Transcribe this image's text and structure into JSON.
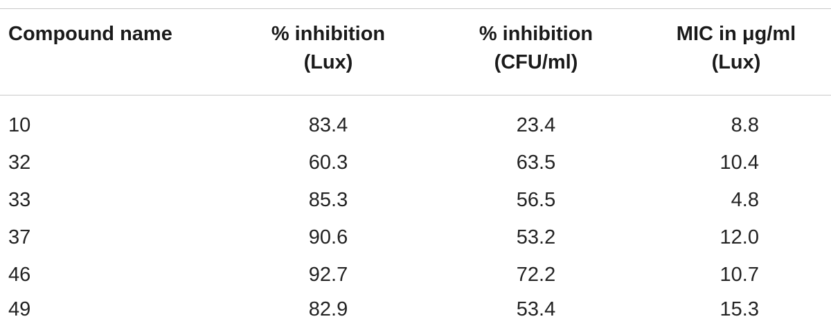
{
  "table": {
    "headers": [
      {
        "line1": "Compound name",
        "line2": ""
      },
      {
        "line1": "% inhibition",
        "line2": "(Lux)"
      },
      {
        "line1": "% inhibition",
        "line2": "(CFU/ml)"
      },
      {
        "line1": "MIC in μg/ml",
        "line2": "(Lux)"
      }
    ],
    "rows": [
      [
        "10",
        "83.4",
        "23.4",
        "8.8"
      ],
      [
        "32",
        "60.3",
        "63.5",
        "10.4"
      ],
      [
        "33",
        "85.3",
        "56.5",
        "4.8"
      ],
      [
        "37",
        "90.6",
        "53.2",
        "12.0"
      ],
      [
        "46",
        "92.7",
        "72.2",
        "10.7"
      ],
      [
        "49",
        "82.9",
        "53.4",
        "15.3"
      ]
    ]
  }
}
